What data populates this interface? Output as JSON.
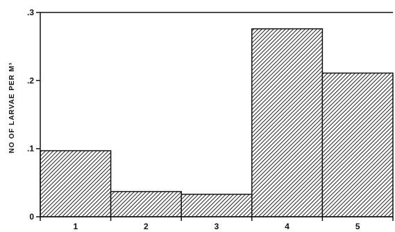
{
  "chart_data": {
    "type": "bar",
    "categories": [
      "1",
      "2",
      "3",
      "4",
      "5"
    ],
    "values": [
      0.097,
      0.037,
      0.033,
      0.276,
      0.211
    ],
    "title": "",
    "xlabel": "",
    "ylabel": "NO OF LARVAE PER M³",
    "ylim": [
      0,
      0.3
    ],
    "yticks": [
      0,
      0.1,
      0.2,
      0.3
    ],
    "ytick_labels": [
      "0",
      ".1",
      ".2",
      ".3"
    ],
    "grid": false,
    "bar_fill": "diagonal-hatch",
    "bar_color": "#111111"
  }
}
